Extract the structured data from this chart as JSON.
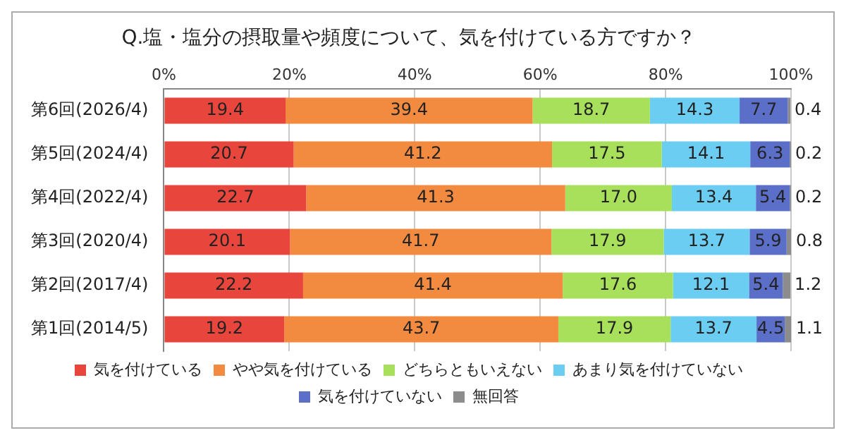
{
  "chart_data": {
    "type": "bar",
    "orientation": "horizontal",
    "stacked": true,
    "title": "Q.塩・塩分の摂取量や頻度について、気を付けている方ですか？",
    "categories": [
      "第6回(2026/4)",
      "第5回(2024/4)",
      "第4回(2022/4)",
      "第3回(2020/4)",
      "第2回(2017/4)",
      "第1回(2014/5)"
    ],
    "series": [
      {
        "name": "気を付けている",
        "color": "#e8463c",
        "values": [
          19.4,
          20.7,
          22.7,
          20.1,
          22.2,
          19.2
        ],
        "value_labels": [
          "19.4",
          "20.7",
          "22.7",
          "20.1",
          "22.2",
          "19.2"
        ]
      },
      {
        "name": "やや気を付けている",
        "color": "#f28a40",
        "values": [
          39.4,
          41.2,
          41.3,
          41.7,
          41.4,
          43.7
        ],
        "value_labels": [
          "39.4",
          "41.2",
          "41.3",
          "41.7",
          "41.4",
          "43.7"
        ]
      },
      {
        "name": "どちらともいえない",
        "color": "#a8e05c",
        "values": [
          18.7,
          17.5,
          17.0,
          17.9,
          17.6,
          17.9
        ],
        "value_labels": [
          "18.7",
          "17.5",
          "17.0",
          "17.9",
          "17.6",
          "17.9"
        ]
      },
      {
        "name": "あまり気を付けていない",
        "color": "#6ccdf2",
        "values": [
          14.3,
          14.1,
          13.4,
          13.7,
          12.1,
          13.7
        ],
        "value_labels": [
          "14.3",
          "14.1",
          "13.4",
          "13.7",
          "12.1",
          "13.7"
        ]
      },
      {
        "name": "気を付けていない",
        "color": "#5b6ec8",
        "values": [
          7.7,
          6.3,
          5.4,
          5.9,
          5.4,
          4.5
        ],
        "value_labels": [
          "7.7",
          "6.3",
          "5.4",
          "5.9",
          "5.4",
          "4.5"
        ]
      },
      {
        "name": "無回答",
        "color": "#8c8c8c",
        "values": [
          0.4,
          0.2,
          0.2,
          0.8,
          1.2,
          1.1
        ],
        "value_labels": [
          "0.4",
          "0.2",
          "0.2",
          "0.8",
          "1.2",
          "1.1"
        ]
      }
    ],
    "xlim": [
      0,
      100
    ],
    "xticks": [
      {
        "value": 0,
        "label": "0%"
      },
      {
        "value": 20,
        "label": "20%"
      },
      {
        "value": 40,
        "label": "40%"
      },
      {
        "value": 60,
        "label": "60%"
      },
      {
        "value": 80,
        "label": "80%"
      },
      {
        "value": 100,
        "label": "100%"
      }
    ],
    "grid": "x",
    "legend": "bottom"
  }
}
